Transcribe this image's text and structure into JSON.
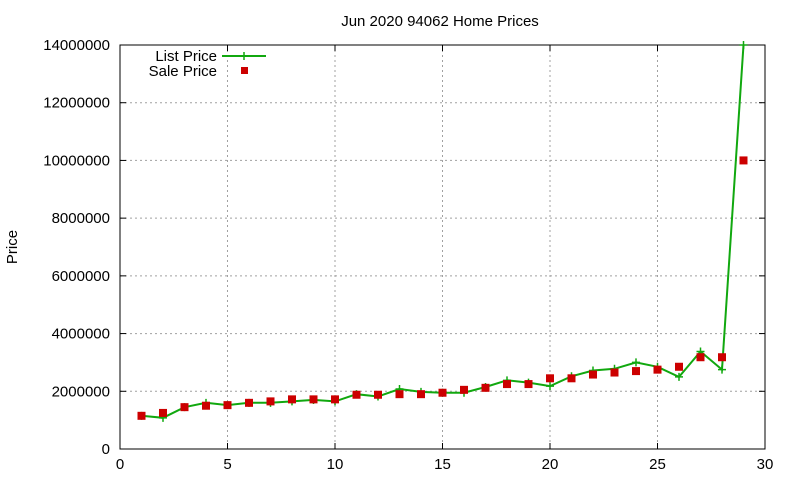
{
  "chart_data": {
    "type": "line",
    "title": "Jun 2020 94062 Home Prices",
    "xlabel": "",
    "ylabel": "Price",
    "xlim": [
      0,
      30
    ],
    "ylim": [
      0,
      14000000
    ],
    "xticks": [
      0,
      5,
      10,
      15,
      20,
      25,
      30
    ],
    "yticks": [
      0,
      2000000,
      4000000,
      6000000,
      8000000,
      10000000,
      12000000,
      14000000
    ],
    "grid": true,
    "legend_position": "top-left",
    "x": [
      1,
      2,
      3,
      4,
      5,
      6,
      7,
      8,
      9,
      10,
      11,
      12,
      13,
      14,
      15,
      16,
      17,
      18,
      19,
      20,
      21,
      22,
      23,
      24,
      25,
      26,
      27,
      28,
      29
    ],
    "series": [
      {
        "name": "List Price",
        "style": "line-plus",
        "color": "#11a80f",
        "values": [
          1150000,
          1080000,
          1450000,
          1600000,
          1520000,
          1600000,
          1600000,
          1650000,
          1700000,
          1650000,
          1900000,
          1820000,
          2080000,
          1980000,
          1950000,
          1950000,
          2150000,
          2380000,
          2300000,
          2180000,
          2520000,
          2720000,
          2780000,
          3000000,
          2850000,
          2500000,
          3380000,
          2750000,
          14000000
        ]
      },
      {
        "name": "Sale Price",
        "style": "square",
        "color": "#cc0000",
        "values": [
          1150000,
          1250000,
          1450000,
          1500000,
          1520000,
          1600000,
          1650000,
          1720000,
          1720000,
          1720000,
          1880000,
          1880000,
          1900000,
          1900000,
          1950000,
          2050000,
          2120000,
          2250000,
          2250000,
          2450000,
          2450000,
          2580000,
          2650000,
          2700000,
          2750000,
          2850000,
          3180000,
          3180000,
          10000000
        ]
      }
    ]
  }
}
